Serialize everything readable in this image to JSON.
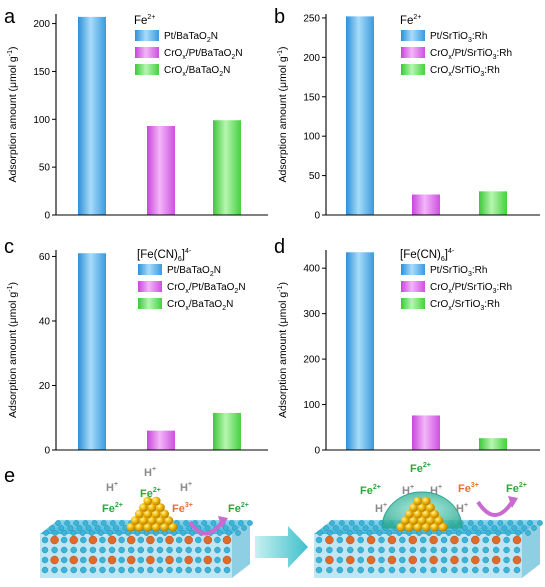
{
  "colors": {
    "blue_fill": "#5ab4ee",
    "magenta_fill": "#e26ff0",
    "green_fill": "#6fe36a",
    "ion_gray": "#8a8a8a",
    "ion_green": "#2aa83a",
    "ion_orange": "#e8702a",
    "arrow_cyan": "#5fd3d8",
    "surface_cyan": "#3cb4d8",
    "surface_orange": "#e06a2a",
    "cluster_gold": "#f0b400",
    "shell_teal": "#48c8b4",
    "arrow_magenta": "#c86ad0"
  },
  "panels": {
    "a": "a",
    "b": "b",
    "c": "c",
    "d": "d",
    "e": "e"
  },
  "y_axis_label_prefix": "Adsorption amount (",
  "y_axis_label_unit": "μmol g",
  "y_axis_label_exp": "-1",
  "y_axis_label_suffix": ")",
  "legends": {
    "a": {
      "title_base": "Fe",
      "title_sup": "2+",
      "items": [
        [
          "Pt/BaTaO",
          "2",
          "N"
        ],
        [
          "CrO",
          "x",
          "/Pt/BaTaO",
          "2",
          "N"
        ],
        [
          "CrO",
          "x",
          "/BaTaO",
          "2",
          "N"
        ]
      ]
    },
    "b": {
      "title_base": "Fe",
      "title_sup": "2+",
      "items": [
        [
          "Pt/SrTiO",
          "3",
          ":Rh"
        ],
        [
          "CrO",
          "x",
          "/Pt/SrTiO",
          "3",
          ":Rh"
        ],
        [
          "CrO",
          "x",
          "/SrTiO",
          "3",
          ":Rh"
        ]
      ]
    },
    "c": {
      "title_base": "[Fe(CN)",
      "title_sub": "6",
      "title_close": "]",
      "title_sup": "4-",
      "items": [
        [
          "Pt/BaTaO",
          "2",
          "N"
        ],
        [
          "CrO",
          "x",
          "/Pt/BaTaO",
          "2",
          "N"
        ],
        [
          "CrO",
          "x",
          "/BaTaO",
          "2",
          "N"
        ]
      ]
    },
    "d": {
      "title_base": "[Fe(CN)",
      "title_sub": "6",
      "title_close": "]",
      "title_sup": "4-",
      "items": [
        [
          "Pt/SrTiO",
          "3",
          ":Rh"
        ],
        [
          "CrO",
          "x",
          "/Pt/SrTiO",
          "3",
          ":Rh"
        ],
        [
          "CrO",
          "x",
          "/SrTiO",
          "3",
          ":Rh"
        ]
      ]
    }
  },
  "chart_data": [
    {
      "panel": "a",
      "type": "bar",
      "categories": [
        "Pt/BaTaO2N",
        "CrOx/Pt/BaTaO2N",
        "CrOx/BaTaO2N"
      ],
      "values": [
        207,
        93,
        99
      ],
      "ylim": [
        0,
        210
      ],
      "yticks": [
        0,
        50,
        100,
        150,
        200
      ],
      "ylabel": "Adsorption amount (μmol g-1)",
      "legend_title": "Fe2+",
      "legend_position": "top-right",
      "grid": false
    },
    {
      "panel": "b",
      "type": "bar",
      "categories": [
        "Pt/SrTiO3:Rh",
        "CrOx/Pt/SrTiO3:Rh",
        "CrOx/SrTiO3:Rh"
      ],
      "values": [
        252,
        26,
        30
      ],
      "ylim": [
        0,
        255
      ],
      "yticks": [
        0,
        50,
        100,
        150,
        200,
        250
      ],
      "ylabel": "Adsorption amount (μmol g-1)",
      "legend_title": "Fe2+",
      "legend_position": "top-right",
      "grid": false
    },
    {
      "panel": "c",
      "type": "bar",
      "categories": [
        "Pt/BaTaO2N",
        "CrOx/Pt/BaTaO2N",
        "CrOx/BaTaO2N"
      ],
      "values": [
        61,
        6,
        11.5
      ],
      "ylim": [
        0,
        62
      ],
      "yticks": [
        0,
        20,
        40,
        60
      ],
      "ylabel": "Adsorption amount (μmol g-1)",
      "legend_title": "[Fe(CN)6]4-",
      "legend_position": "top-right",
      "grid": false
    },
    {
      "panel": "d",
      "type": "bar",
      "categories": [
        "Pt/SrTiO3:Rh",
        "CrOx/Pt/SrTiO3:Rh",
        "CrOx/SrTiO3:Rh"
      ],
      "values": [
        435,
        76,
        26
      ],
      "ylim": [
        0,
        440
      ],
      "yticks": [
        0,
        100,
        200,
        300,
        400
      ],
      "ylabel": "Adsorption amount (μmol g-1)",
      "legend_title": "[Fe(CN)6]4-",
      "legend_position": "top-right",
      "grid": false
    }
  ],
  "schematic": {
    "left": {
      "h1": "H",
      "h1_sup": "+",
      "h2": "H",
      "h2_sup": "+",
      "h3": "H",
      "h3_sup": "+",
      "fe2a": "Fe",
      "fe2a_sup": "2+",
      "fe2b": "Fe",
      "fe2b_sup": "2+",
      "fe3": "Fe",
      "fe3_sup": "3+",
      "fe2c": "Fe",
      "fe2c_sup": "2+"
    },
    "right": {
      "fe2top": "Fe",
      "fe2top_sup": "2+",
      "fe2a": "Fe",
      "fe2a_sup": "2+",
      "h1": "H",
      "h1_sup": "+",
      "h2": "H",
      "h2_sup": "+",
      "h3": "H",
      "h3_sup": "+",
      "h4": "H",
      "h4_sup": "+",
      "fe3": "Fe",
      "fe3_sup": "3+",
      "fe2b": "Fe",
      "fe2b_sup": "2+"
    }
  }
}
